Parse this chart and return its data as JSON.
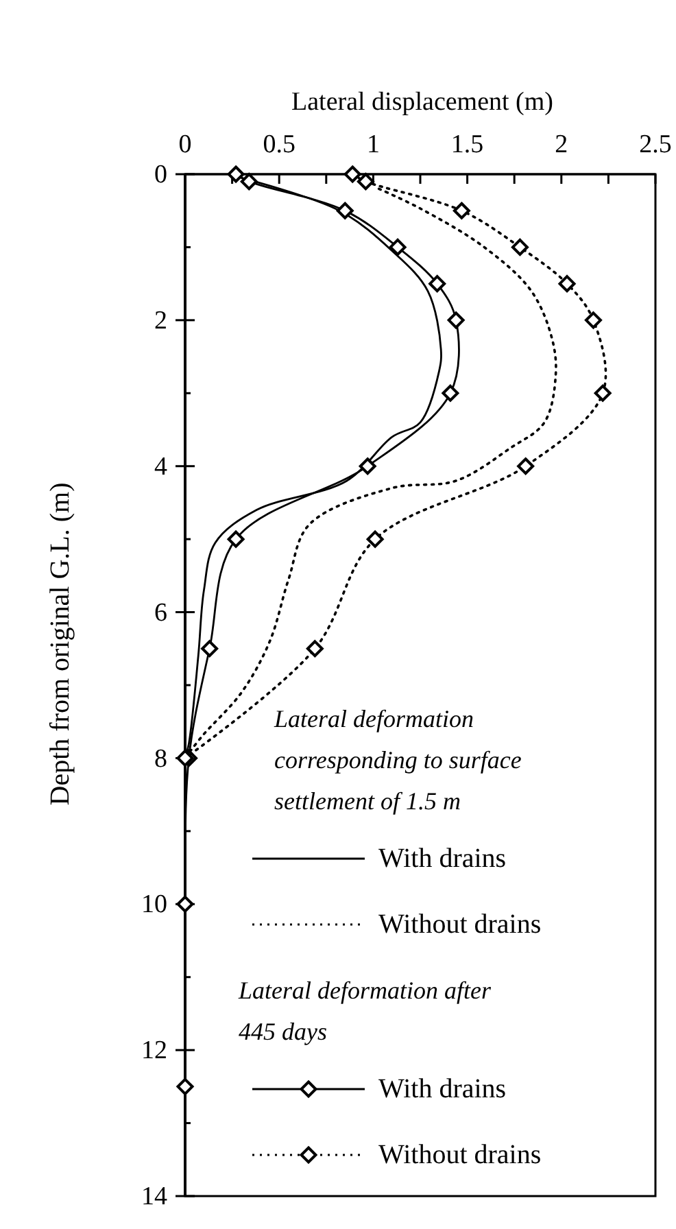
{
  "chart_data": {
    "type": "line",
    "xlabel": "Lateral displacement (m)",
    "ylabel": "Depth from original G.L. (m)",
    "xlim": [
      0,
      2.5
    ],
    "ylim": [
      14,
      0
    ],
    "xticks": [
      0,
      {
        "value": 0.25,
        "label": null
      },
      0.5,
      {
        "value": 0.75,
        "label": null
      },
      1,
      {
        "value": 1.25,
        "label": null
      },
      1.5,
      {
        "value": 1.75,
        "label": null
      },
      2,
      {
        "value": 2.25,
        "label": null
      },
      2.5
    ],
    "yticks": [
      0,
      {
        "value": 1,
        "label": null
      },
      2,
      {
        "value": 3,
        "label": null
      },
      4,
      {
        "value": 5,
        "label": null
      },
      6,
      {
        "value": 7,
        "label": null
      },
      8,
      {
        "value": 9,
        "label": null
      },
      10,
      {
        "value": 11,
        "label": null
      },
      12,
      {
        "value": 13,
        "label": null
      },
      14
    ],
    "legend": "bottom",
    "grid": false,
    "annotations": [
      "Lateral deformation corresponding to surface settlement of 1.5 m",
      "Lateral deformation after 445 days"
    ],
    "series": [
      {
        "name": "With drains",
        "color": "#000000",
        "line_style": "solid",
        "marker": "none",
        "x": [
          0.3,
          0.82,
          1.1,
          1.29,
          1.36,
          1.35,
          1.25,
          1.1,
          0.86,
          0.38,
          0.16,
          0.1,
          0.07,
          0.02,
          0
        ],
        "values": [
          0.05,
          0.5,
          1.05,
          1.6,
          2.4,
          2.7,
          3.4,
          3.6,
          4.2,
          4.6,
          5.05,
          5.7,
          6.6,
          7.8,
          8
        ]
      },
      {
        "name": "Without drains",
        "color": "#000000",
        "line_style": "dotted",
        "marker": "none",
        "x": [
          1.03,
          1.25,
          1.59,
          1.84,
          1.95,
          1.97,
          1.91,
          1.73,
          1.44,
          1.1,
          0.66,
          0.55,
          0.45,
          0.3,
          0.09,
          0
        ],
        "values": [
          0.2,
          0.47,
          1,
          1.6,
          2.25,
          2.75,
          3.4,
          3.75,
          4.2,
          4.3,
          4.8,
          5.55,
          6.4,
          7.1,
          7.7,
          8
        ]
      },
      {
        "name": "With drains",
        "color": "#000000",
        "line_style": "solid",
        "marker": "diamond",
        "x": [
          0.27,
          0.34,
          0.85,
          1.13,
          1.34,
          1.44,
          1.41,
          0.97,
          0.27,
          0.13,
          0.02,
          0,
          0
        ],
        "values": [
          0,
          0.1,
          0.5,
          1,
          1.5,
          2,
          3,
          4,
          5,
          6.5,
          8,
          10,
          12.5
        ]
      },
      {
        "name": "Without drains",
        "color": "#000000",
        "line_style": "dotted",
        "marker": "diamond",
        "x": [
          0.89,
          0.96,
          1.47,
          1.78,
          2.03,
          2.17,
          2.22,
          1.81,
          1.01,
          0.69,
          0
        ],
        "values": [
          0,
          0.1,
          0.5,
          1,
          1.5,
          2,
          3,
          4,
          5,
          6.5,
          8
        ]
      }
    ]
  }
}
